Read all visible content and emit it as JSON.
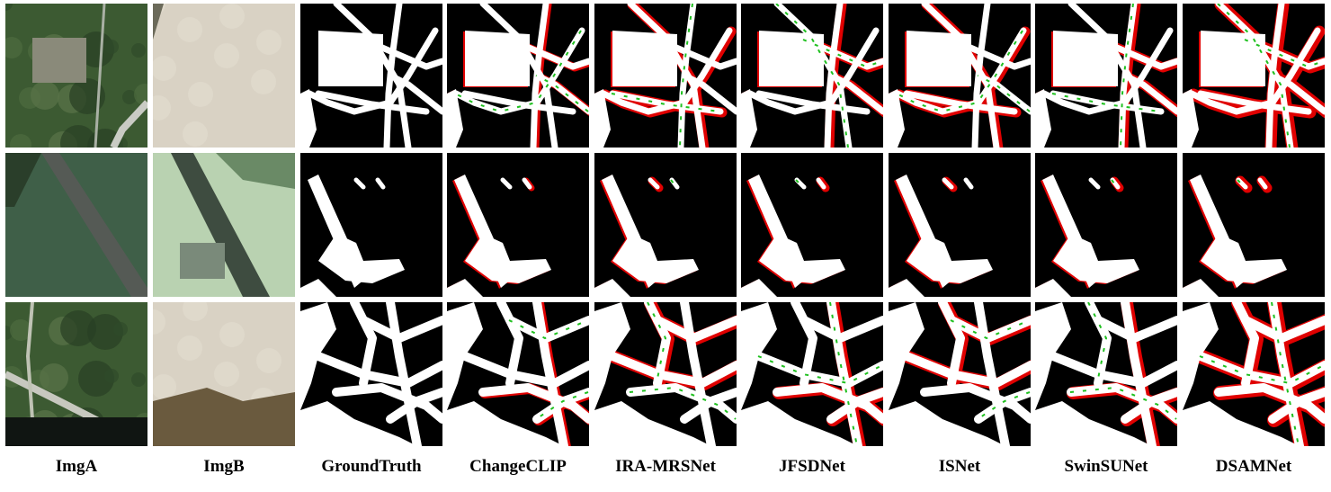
{
  "figure": {
    "columns": [
      {
        "label": "ImgA",
        "kind": "photo-a"
      },
      {
        "label": "ImgB",
        "kind": "photo-b"
      },
      {
        "label": "GroundTruth",
        "kind": "mask",
        "errors": 0
      },
      {
        "label": "ChangeCLIP",
        "kind": "mask",
        "errors": 1
      },
      {
        "label": "IRA-MRSNet",
        "kind": "mask",
        "errors": 2
      },
      {
        "label": "JFSDNet",
        "kind": "mask",
        "errors": 2
      },
      {
        "label": "ISNet",
        "kind": "mask",
        "errors": 2
      },
      {
        "label": "SwinSUNet",
        "kind": "mask",
        "errors": 2
      },
      {
        "label": "DSAMNet",
        "kind": "mask",
        "errors": 3
      }
    ],
    "rows": 3,
    "colors": {
      "mask_background": "#000000",
      "change": "#ffffff",
      "false_positive": "#e00000",
      "false_negative": "#1fc01f",
      "vegetation": "#3c5a32",
      "sand": "#d9d2c4"
    }
  }
}
